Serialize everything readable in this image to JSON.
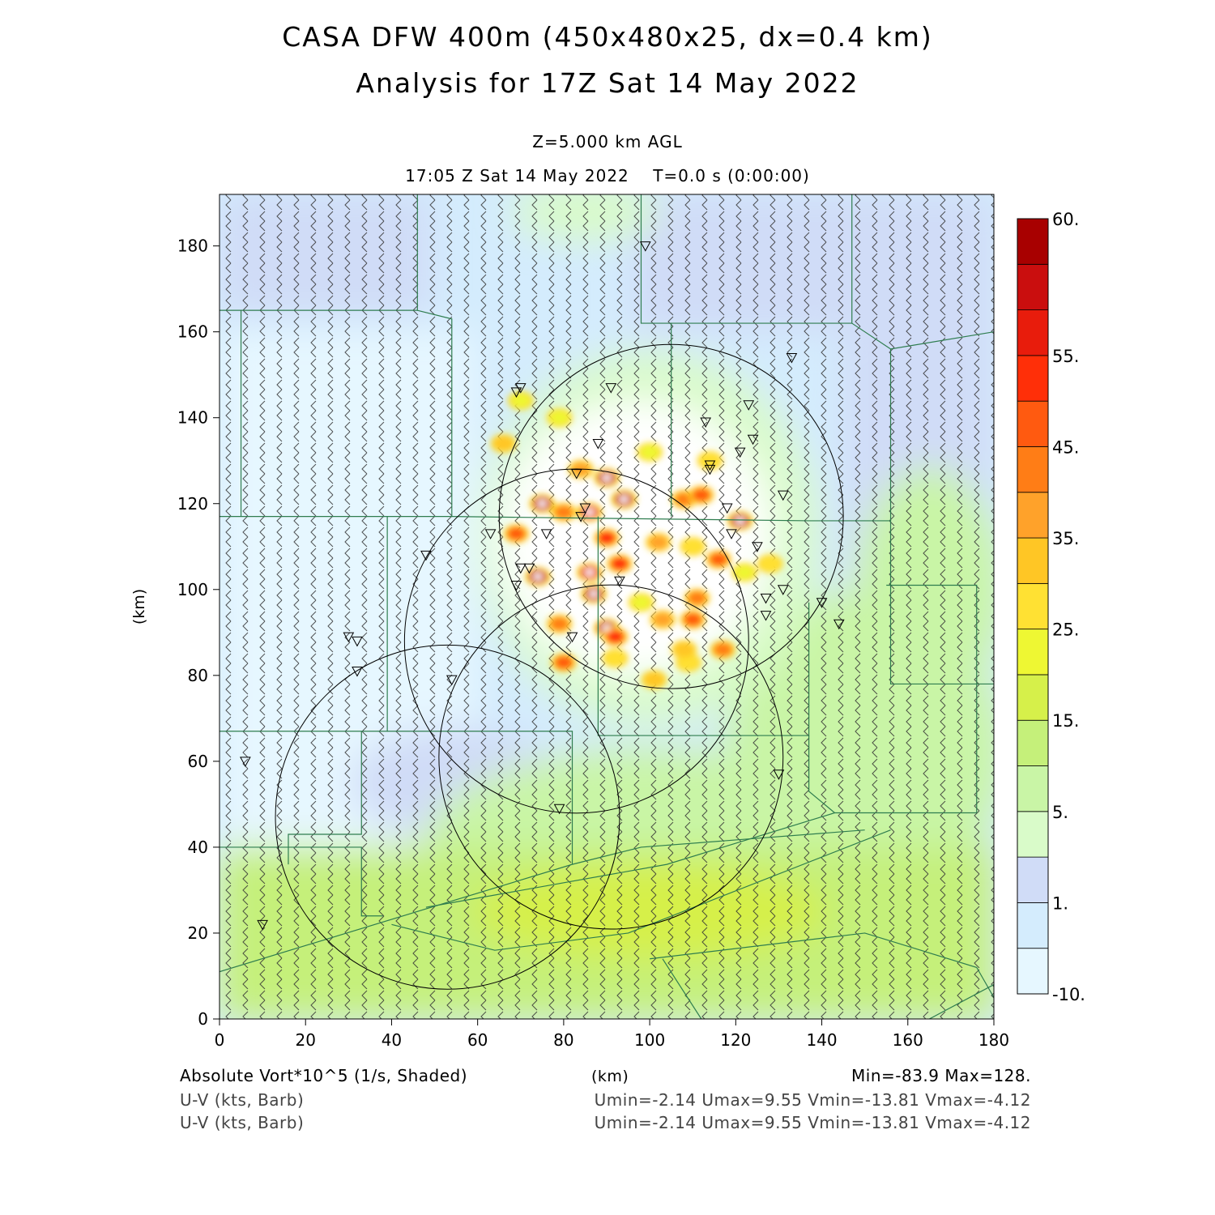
{
  "header": {
    "title_line1": "CASA DFW 400m (450x480x25, dx=0.4 km)",
    "title_line2": "Analysis for 17Z Sat 14 May 2022",
    "level": "Z=5.000 km AGL",
    "valid_time": "17:05 Z Sat 14 May 2022    T=0.0 s (0:00:00)"
  },
  "footer": {
    "field1": "Absolute Vort*10^5 (1/s, Shaded)",
    "field2": "U-V (kts, Barb)",
    "field3": "U-V (kts, Barb)",
    "xunit": "(km)",
    "minmax": "Min=-83.9 Max=128.",
    "uv_stats1": "Umin=-2.14 Umax=9.55 Vmin=-13.81 Vmax=-4.12",
    "uv_stats2": "Umin=-2.14 Umax=9.55 Vmin=-13.81 Vmax=-4.12"
  },
  "colors": {
    "levels": [
      "#e6f7ff",
      "#d4ecfd",
      "#d0dcf7",
      "#d9fbc9",
      "#c9f5a6",
      "#c5f07a",
      "#d6f04a",
      "#eef733",
      "#ffe133",
      "#ffc625",
      "#ffa22a",
      "#ff7d16",
      "#ff5a10",
      "#ff2f08",
      "#e81c0c",
      "#ca0e0e",
      "#a80000"
    ],
    "county_lines": "#2f7d4f",
    "radar_rings": "#000000"
  },
  "chart_data": {
    "type": "heatmap",
    "xlabel": "(km)",
    "ylabel": "(km)",
    "xlim": [
      0,
      180
    ],
    "ylim": [
      0,
      192
    ],
    "xticks": [
      0,
      20,
      40,
      60,
      80,
      100,
      120,
      140,
      160,
      180
    ],
    "yticks": [
      0,
      20,
      40,
      60,
      80,
      100,
      120,
      140,
      160,
      180
    ],
    "colorbar": {
      "tick_labels": [
        "-10.",
        "1.",
        "5.",
        "15.",
        "25.",
        "35.",
        "45.",
        "55.",
        "60."
      ],
      "tick_values": [
        -10,
        1,
        5,
        15,
        25,
        35,
        45,
        55,
        60
      ]
    },
    "field_min": -83.9,
    "field_max": 128,
    "radar_rings": [
      {
        "cx": 105,
        "cy": 117,
        "r": 40
      },
      {
        "cx": 83,
        "cy": 88,
        "r": 40
      },
      {
        "cx": 91,
        "cy": 61,
        "r": 40
      },
      {
        "cx": 53,
        "cy": 47,
        "r": 40
      }
    ],
    "stations": [
      [
        99,
        180
      ],
      [
        133,
        154
      ],
      [
        70,
        147
      ],
      [
        69,
        146
      ],
      [
        91,
        147
      ],
      [
        123,
        143
      ],
      [
        113,
        139
      ],
      [
        124,
        135
      ],
      [
        88,
        134
      ],
      [
        121,
        132
      ],
      [
        114,
        129
      ],
      [
        114,
        128
      ],
      [
        83,
        127
      ],
      [
        131,
        122
      ],
      [
        85,
        119
      ],
      [
        118,
        119
      ],
      [
        84,
        117
      ],
      [
        63,
        113
      ],
      [
        76,
        113
      ],
      [
        119,
        113
      ],
      [
        125,
        110
      ],
      [
        48,
        108
      ],
      [
        70,
        105
      ],
      [
        72,
        105
      ],
      [
        69,
        101
      ],
      [
        93,
        102
      ],
      [
        131,
        100
      ],
      [
        127,
        98
      ],
      [
        140,
        97
      ],
      [
        127,
        94
      ],
      [
        144,
        92
      ],
      [
        30,
        89
      ],
      [
        32,
        88
      ],
      [
        82,
        89
      ],
      [
        32,
        81
      ],
      [
        54,
        79
      ],
      [
        6,
        60
      ],
      [
        130,
        57
      ],
      [
        79,
        49
      ],
      [
        10,
        22
      ]
    ],
    "vorticity_cells": [
      {
        "x": 75,
        "y": 120,
        "v": 60
      },
      {
        "x": 90,
        "y": 126,
        "v": 60
      },
      {
        "x": 94,
        "y": 121,
        "v": 60
      },
      {
        "x": 86,
        "y": 118,
        "v": 55
      },
      {
        "x": 90,
        "y": 112,
        "v": 50
      },
      {
        "x": 121,
        "y": 116,
        "v": 60
      },
      {
        "x": 74,
        "y": 103,
        "v": 60
      },
      {
        "x": 87,
        "y": 99,
        "v": 60
      },
      {
        "x": 86,
        "y": 104,
        "v": 55
      },
      {
        "x": 93,
        "y": 106,
        "v": 50
      },
      {
        "x": 90,
        "y": 91,
        "v": 60
      },
      {
        "x": 92,
        "y": 89,
        "v": 50
      },
      {
        "x": 69,
        "y": 113,
        "v": 45
      },
      {
        "x": 80,
        "y": 118,
        "v": 40
      },
      {
        "x": 108,
        "y": 121,
        "v": 40
      },
      {
        "x": 112,
        "y": 122,
        "v": 45
      },
      {
        "x": 116,
        "y": 107,
        "v": 45
      },
      {
        "x": 110,
        "y": 93,
        "v": 45
      },
      {
        "x": 111,
        "y": 98,
        "v": 40
      },
      {
        "x": 117,
        "y": 86,
        "v": 40
      },
      {
        "x": 80,
        "y": 83,
        "v": 45
      },
      {
        "x": 79,
        "y": 92,
        "v": 40
      },
      {
        "x": 102,
        "y": 111,
        "v": 35
      },
      {
        "x": 103,
        "y": 93,
        "v": 35
      },
      {
        "x": 66,
        "y": 134,
        "v": 30
      },
      {
        "x": 84,
        "y": 128,
        "v": 35
      },
      {
        "x": 101,
        "y": 79,
        "v": 30
      },
      {
        "x": 109,
        "y": 83,
        "v": 25
      },
      {
        "x": 128,
        "y": 106,
        "v": 25
      },
      {
        "x": 122,
        "y": 104,
        "v": 20
      },
      {
        "x": 70,
        "y": 144,
        "v": 20
      },
      {
        "x": 79,
        "y": 140,
        "v": 20
      },
      {
        "x": 110,
        "y": 110,
        "v": 25
      },
      {
        "x": 98,
        "y": 97,
        "v": 20
      },
      {
        "x": 114,
        "y": 130,
        "v": 25
      },
      {
        "x": 100,
        "y": 132,
        "v": 20
      },
      {
        "x": 108,
        "y": 86,
        "v": 30
      },
      {
        "x": 92,
        "y": 84,
        "v": 25
      }
    ]
  }
}
